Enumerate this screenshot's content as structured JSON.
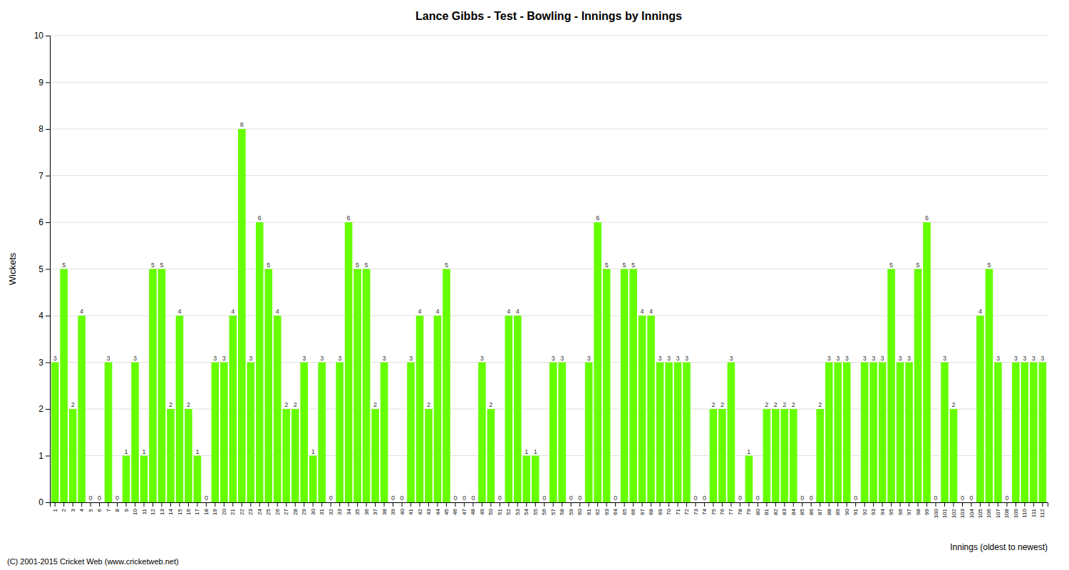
{
  "chart_data": {
    "type": "bar",
    "title": "Lance Gibbs - Test - Bowling - Innings by Innings",
    "ylabel": "Wickets",
    "xlabel": "Innings (oldest to newest)",
    "annotations": [
      "(C) 2001-2015 Cricket Web (www.cricketweb.net)"
    ],
    "categories": [
      "1",
      "2",
      "3",
      "4",
      "5",
      "6",
      "7",
      "8",
      "9",
      "10",
      "11",
      "12",
      "13",
      "14",
      "15",
      "16",
      "17",
      "18",
      "19",
      "20",
      "21",
      "22",
      "23",
      "24",
      "25",
      "26",
      "27",
      "28",
      "29",
      "30",
      "31",
      "32",
      "33",
      "34",
      "35",
      "36",
      "37",
      "38",
      "39",
      "40",
      "41",
      "42",
      "43",
      "44",
      "45",
      "46",
      "47",
      "48",
      "49",
      "50",
      "51",
      "52",
      "53",
      "54",
      "55",
      "56",
      "57",
      "58",
      "59",
      "60",
      "61",
      "62",
      "63",
      "64",
      "65",
      "66",
      "67",
      "68",
      "69",
      "70",
      "71",
      "72",
      "73",
      "74",
      "75",
      "76",
      "77",
      "78",
      "79",
      "80",
      "81",
      "82",
      "83",
      "84",
      "85",
      "86",
      "87",
      "88",
      "89",
      "90",
      "91",
      "92",
      "93",
      "94",
      "95",
      "96",
      "97",
      "98",
      "99",
      "100",
      "101",
      "102",
      "103",
      "104",
      "105",
      "106",
      "107",
      "108",
      "109",
      "110",
      "111",
      "112"
    ],
    "values": [
      3,
      5,
      2,
      4,
      0,
      0,
      3,
      0,
      1,
      3,
      1,
      5,
      5,
      2,
      4,
      2,
      1,
      0,
      3,
      3,
      4,
      8,
      3,
      6,
      5,
      4,
      2,
      2,
      3,
      1,
      3,
      0,
      3,
      6,
      5,
      5,
      2,
      3,
      0,
      0,
      3,
      4,
      2,
      4,
      5,
      0,
      0,
      0,
      3,
      2,
      0,
      4,
      4,
      1,
      1,
      0,
      3,
      3,
      0,
      0,
      3,
      6,
      5,
      0,
      5,
      5,
      4,
      4,
      3,
      3,
      3,
      3,
      0,
      0,
      2,
      2,
      3,
      0,
      1,
      0,
      2,
      2,
      2,
      2,
      0,
      0,
      2,
      3,
      3,
      3,
      0,
      3,
      3,
      3,
      5,
      3,
      3,
      5,
      6,
      0,
      3,
      2,
      0,
      0,
      4,
      5,
      3,
      0,
      3,
      3,
      3,
      3
    ],
    "color": "#66ff00",
    "ylim": [
      0,
      10
    ],
    "yticks": [
      0,
      1,
      2,
      3,
      4,
      5,
      6,
      7,
      8,
      9,
      10
    ],
    "grid": true,
    "data_labels": true
  }
}
